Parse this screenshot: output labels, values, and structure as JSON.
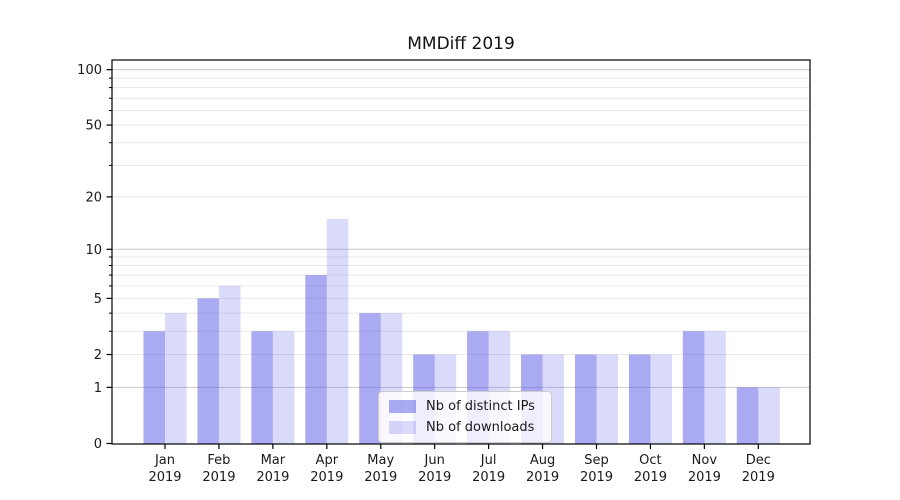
{
  "chart_data": {
    "type": "bar",
    "title": "MMDiff 2019",
    "x_axis": {
      "months": [
        "Jan",
        "Feb",
        "Mar",
        "Apr",
        "May",
        "Jun",
        "Jul",
        "Aug",
        "Sep",
        "Oct",
        "Nov",
        "Dec"
      ],
      "year": "2019"
    },
    "y_axis": {
      "scale": "log1p",
      "major_ticks": [
        0,
        1,
        2,
        5,
        10,
        20,
        50,
        100
      ],
      "minor_ticks": [
        3,
        4,
        6,
        7,
        8,
        9,
        30,
        40,
        60,
        70,
        80,
        90
      ],
      "emphasized_gridlines": [
        1,
        10,
        100
      ],
      "range_max": 112
    },
    "series": [
      {
        "name": "Nb of distinct IPs",
        "base_color": "#5555e6",
        "alpha": 0.5,
        "values": [
          3,
          5,
          3,
          7,
          4,
          2,
          3,
          2,
          2,
          2,
          3,
          1
        ]
      },
      {
        "name": "Nb of downloads",
        "base_color": "#5555e6",
        "alpha": 0.22,
        "values": [
          4,
          6,
          3,
          15,
          4,
          2,
          3,
          2,
          2,
          2,
          3,
          1
        ]
      }
    ],
    "colors": {
      "grid_minor": "#e8e8e8",
      "grid_major": "#c9c9c9",
      "axis": "#000000",
      "tick_text": "#1a1a1a"
    },
    "legend_position": "lower center"
  }
}
